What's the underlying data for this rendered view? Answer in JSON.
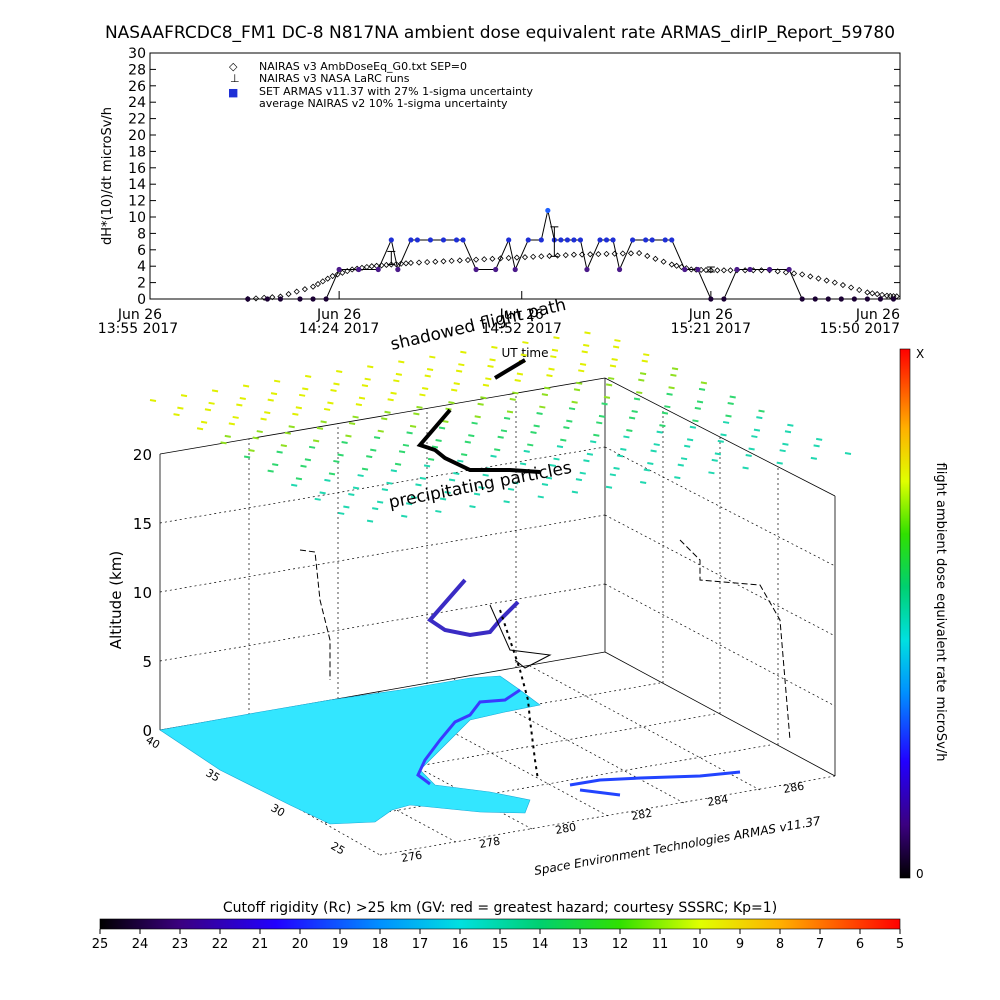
{
  "title": "NASAAFRCDC8_FM1 DC-8   N817NA ambient dose equivalent rate ARMAS_dirIP_Report_59780",
  "chart_data": [
    {
      "type": "line",
      "ylabel": "dH*(10)/dt microSv/h",
      "xlabel": "UT time",
      "ylim": [
        0,
        30
      ],
      "yticks": [
        "0",
        "2",
        "4",
        "6",
        "8",
        "10",
        "12",
        "14",
        "16",
        "18",
        "20",
        "22",
        "24",
        "26",
        "28",
        "30"
      ],
      "xlim_minutes": [
        0,
        115
      ],
      "xticks": [
        {
          "date": "Jun 26",
          "time": "13:55 2017",
          "minute": 0
        },
        {
          "date": "Jun 26",
          "time": "14:24 2017",
          "minute": 29
        },
        {
          "date": "Jun 26",
          "time": "14:52 2017",
          "minute": 57
        },
        {
          "date": "Jun 26",
          "time": "15:21 2017",
          "minute": 86
        },
        {
          "date": "Jun 26",
          "time": "15:50 2017",
          "minute": 115
        }
      ],
      "legend": [
        {
          "symbol": "◇",
          "label": "NAIRAS v3 AmbDoseEq_G0.txt SEP=0"
        },
        {
          "symbol": "⊥",
          "label": "NAIRAS v3 NASA LaRC runs"
        },
        {
          "symbol": "■",
          "label": "SET ARMAS v11.37 with 27% 1-sigma uncertainty"
        },
        {
          "symbol": "",
          "label": "average NAIRAS v2 10% 1-sigma uncertainty"
        }
      ],
      "series": [
        {
          "name": "NAIRAS v3 AmbDoseEq_G0.txt SEP=0",
          "color": "#000000",
          "x": [
            15,
            20,
            25,
            28,
            31,
            34,
            37,
            40,
            45,
            50,
            55,
            60,
            65,
            70,
            75,
            80,
            83,
            86,
            90,
            95,
            100,
            105,
            110,
            113,
            115
          ],
          "y": [
            0,
            0.3,
            1.5,
            2.8,
            3.6,
            4.0,
            4.2,
            4.4,
            4.6,
            4.8,
            5.0,
            5.2,
            5.4,
            5.5,
            5.6,
            4.2,
            3.6,
            3.5,
            3.5,
            3.5,
            3.0,
            2.0,
            0.8,
            0.4,
            0.3
          ]
        },
        {
          "name": "SET ARMAS v11.37 with 27% 1-sigma uncertainty",
          "color": "#1e2fd6",
          "x": [
            15,
            18,
            20,
            23,
            25,
            27,
            29,
            32,
            35,
            37,
            38,
            40,
            41,
            43,
            45,
            47,
            48,
            50,
            53,
            55,
            56,
            58,
            60,
            61,
            62,
            63,
            64,
            65,
            66,
            67,
            69,
            70,
            71,
            72,
            74,
            76,
            77,
            79,
            80,
            82,
            84,
            86,
            88,
            90,
            92,
            95,
            98,
            100,
            102,
            104,
            106,
            108,
            110,
            112,
            114
          ],
          "y": [
            0,
            0,
            0,
            0,
            0,
            0,
            3.6,
            3.6,
            3.6,
            7.2,
            3.6,
            7.2,
            7.2,
            7.2,
            7.2,
            7.2,
            7.2,
            3.6,
            3.6,
            7.2,
            3.6,
            7.2,
            7.2,
            10.8,
            7.2,
            7.2,
            7.2,
            7.2,
            7.2,
            3.6,
            7.2,
            7.2,
            7.2,
            3.6,
            7.2,
            7.2,
            7.2,
            7.2,
            7.2,
            3.6,
            3.6,
            0,
            0,
            3.6,
            3.6,
            3.6,
            3.6,
            0,
            0,
            0,
            0,
            0,
            0,
            0,
            0
          ]
        }
      ],
      "error_bars": [
        {
          "name": "NAIRAS v3 NASA LaRC runs",
          "x": 37,
          "y": 5.0,
          "err": 0.8
        },
        {
          "name": "NAIRAS v3 NASA LaRC runs",
          "x": 62,
          "y": 7.0,
          "err": 1.8
        },
        {
          "name": "NAIRAS v3 NASA LaRC runs",
          "x": 86,
          "y": 3.6,
          "err": 0.3
        }
      ],
      "grid": false,
      "legend_position": "top-left"
    },
    {
      "type": "scatter",
      "zlabel": "Altitude (km)",
      "zlim": [
        0,
        20
      ],
      "zticks": [
        "0",
        "5",
        "10",
        "15",
        "20"
      ],
      "latticks": [
        "40",
        "35",
        "30",
        "25"
      ],
      "lonticks": [
        "276",
        "278",
        "280",
        "282",
        "284",
        "286"
      ],
      "annotations": [
        "shadowed flight path",
        "precipitating particles",
        "Space Environment Technologies ARMAS v11.37"
      ],
      "grid": true
    }
  ],
  "colorbar_right": {
    "label": "flight ambient dose equivalent rate microSv/h",
    "top": "X",
    "bottom": "0"
  },
  "colorbar_bottom": {
    "title": "Cutoff rigidity (Rc) >25 km (GV: red = greatest hazard; courtesy SSSRC; Kp=1)",
    "ticks": [
      "25",
      "24",
      "23",
      "22",
      "21",
      "20",
      "19",
      "18",
      "17",
      "16",
      "15",
      "14",
      "13",
      "12",
      "11",
      "10",
      "9",
      "8",
      "7",
      "6",
      "5"
    ]
  }
}
